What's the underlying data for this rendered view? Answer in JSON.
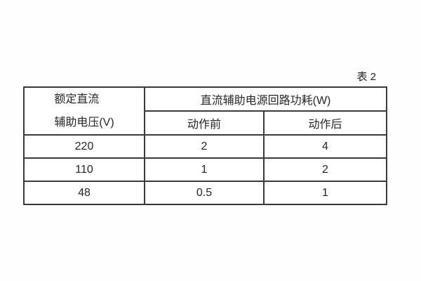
{
  "caption": "表 2",
  "table": {
    "voltage_header": {
      "line1": "额定直流",
      "line2": "辅助电压(V)"
    },
    "group_header": "直流辅助电源回路功耗(W)",
    "sub_headers": {
      "before": "动作前",
      "after": "动作后"
    },
    "rows": [
      {
        "voltage": "220",
        "before": "2",
        "after": "4"
      },
      {
        "voltage": "110",
        "before": "1",
        "after": "2"
      },
      {
        "voltage": "48",
        "before": "0.5",
        "after": "1"
      }
    ]
  },
  "colors": {
    "border": "#3a3a3a",
    "text": "#262626",
    "background": "#fefefe"
  }
}
